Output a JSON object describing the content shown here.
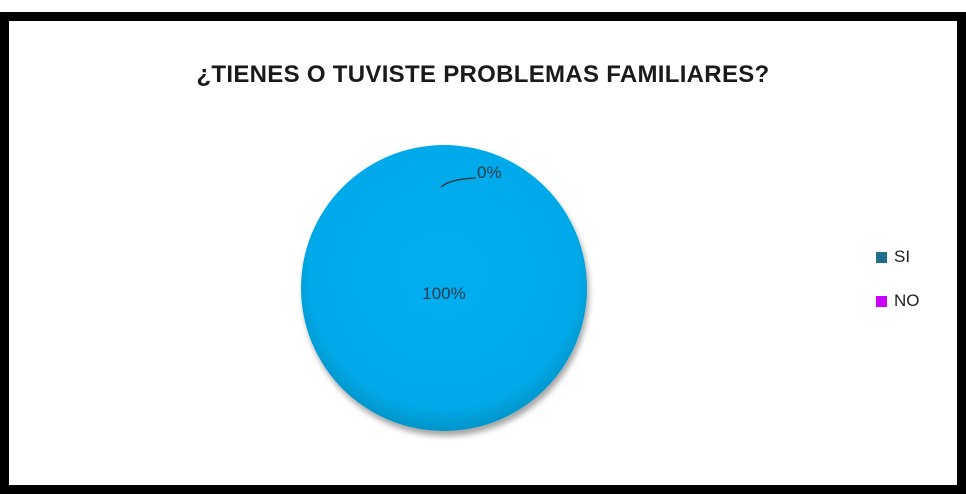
{
  "chart_data": {
    "type": "pie",
    "title": "¿TIENES O TUVISTE PROBLEMAS FAMILIARES?",
    "slices": [
      {
        "label": "SI",
        "value": 100,
        "data_label": "100%",
        "color": "#00AEEF"
      },
      {
        "label": "NO",
        "value": 0,
        "data_label": "0%",
        "color": "#CC00FF"
      }
    ],
    "legend": {
      "position": "right",
      "entries": [
        {
          "label": "SI",
          "color": "#1F6E8C"
        },
        {
          "label": "NO",
          "color": "#CC00FF"
        }
      ]
    }
  }
}
